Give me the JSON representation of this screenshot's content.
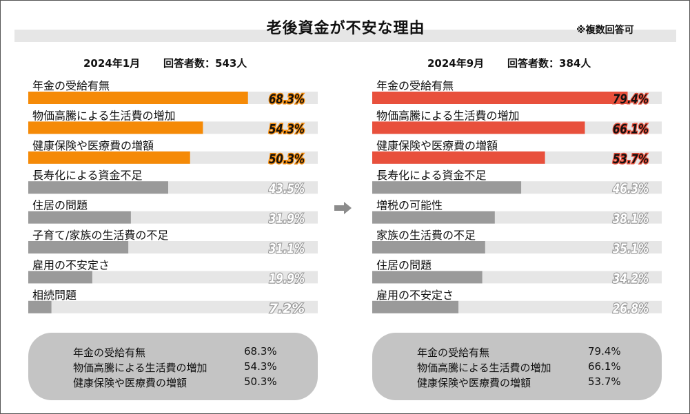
{
  "page": {
    "title": "老後資金が不安な理由",
    "note": "※複数回答可"
  },
  "colors": {
    "top_left": "#f58a07",
    "top_right": "#e8503c",
    "rest": "#9a9a9a",
    "track": "#e6e6e6",
    "summary_bg": "#c4c4c4"
  },
  "chart_data": [
    {
      "type": "bar",
      "orientation": "horizontal",
      "survey_date": "2024年1月",
      "respondents": "回答者数：543人",
      "categories": [
        "年金の受給有無",
        "物価高騰による生活費の増加",
        "健康保険や医療費の増額",
        "長寿化による資金不足",
        "住居の問題",
        "子育て/家族の生活費の不足",
        "雇用の不安定さ",
        "相続問題"
      ],
      "values": [
        68.3,
        54.3,
        50.3,
        43.5,
        31.9,
        31.1,
        19.9,
        7.2
      ],
      "value_labels": [
        "68.3%",
        "54.3%",
        "50.3%",
        "43.5%",
        "31.9%",
        "31.1%",
        "19.9%",
        "7.2%"
      ],
      "xlim": [
        0,
        90
      ],
      "highlight_top": 3,
      "summary": [
        {
          "label": "年金の受給有無",
          "value": "68.3%"
        },
        {
          "label": "物価高騰による生活費の増加",
          "value": "54.3%"
        },
        {
          "label": "健康保険や医療費の増額",
          "value": "50.3%"
        }
      ]
    },
    {
      "type": "bar",
      "orientation": "horizontal",
      "survey_date": "2024年9月",
      "respondents": "回答者数：384人",
      "categories": [
        "年金の受給有無",
        "物価高騰による生活費の増加",
        "健康保険や医療費の増額",
        "長寿化による資金不足",
        "増税の可能性",
        "家族の生活費の不足",
        "住居の問題",
        "雇用の不安定さ"
      ],
      "values": [
        79.4,
        66.1,
        53.7,
        46.3,
        38.1,
        35.1,
        34.2,
        26.8
      ],
      "value_labels": [
        "79.4%",
        "66.1%",
        "53.7%",
        "46.3%",
        "38.1%",
        "35.1%",
        "34.2%",
        "26.8%"
      ],
      "xlim": [
        0,
        90
      ],
      "highlight_top": 3,
      "summary": [
        {
          "label": "年金の受給有無",
          "value": "79.4%"
        },
        {
          "label": "物価高騰による生活費の増加",
          "value": "66.1%"
        },
        {
          "label": "健康保険や医療費の増額",
          "value": "53.7%"
        }
      ]
    }
  ],
  "icons": {
    "transition_arrow": "arrow-right-icon"
  }
}
